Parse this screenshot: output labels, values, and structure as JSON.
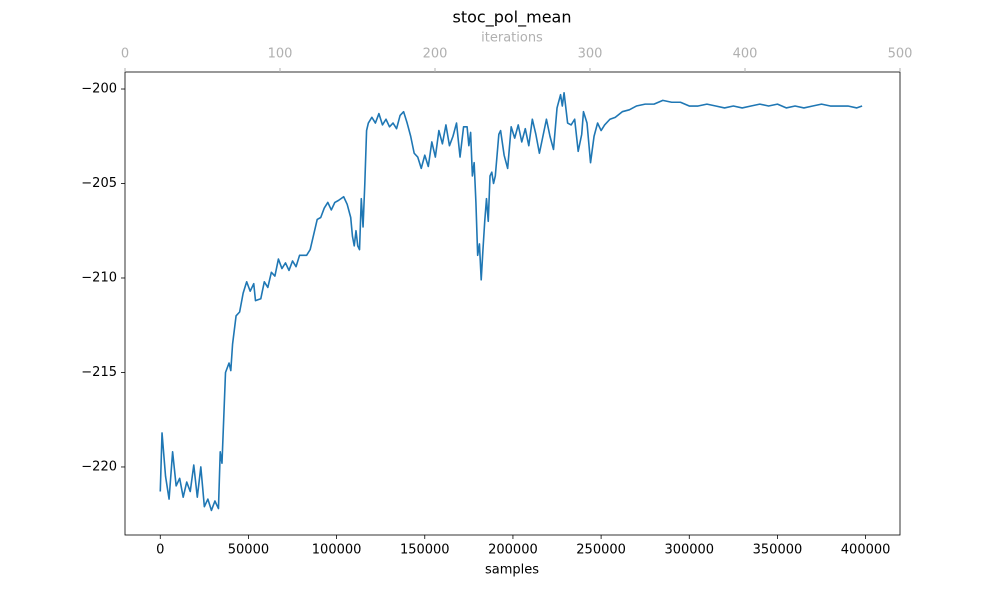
{
  "chart_data": {
    "type": "line",
    "title": "stoc_pol_mean",
    "xlabel": "samples",
    "x2label": "iterations",
    "color": "#1f77b4",
    "x2color": "#b0b0b0",
    "xlim": [
      -20000,
      419500
    ],
    "xticks": [
      0,
      50000,
      100000,
      150000,
      200000,
      250000,
      300000,
      350000,
      400000
    ],
    "x2lim": [
      0,
      500
    ],
    "x2ticks": [
      0,
      100,
      200,
      300,
      400,
      500
    ],
    "ylim": [
      -223.6,
      -199.1
    ],
    "yticks": [
      {
        "value": -200,
        "label": "−200"
      },
      {
        "value": -205,
        "label": "−205"
      },
      {
        "value": -210,
        "label": "−210"
      },
      {
        "value": -215,
        "label": "−215"
      },
      {
        "value": -220,
        "label": "−220"
      }
    ],
    "x": [
      0,
      1000,
      3000,
      5000,
      7000,
      9000,
      11000,
      13000,
      15000,
      17000,
      19000,
      21000,
      23000,
      25000,
      27000,
      29000,
      31000,
      33000,
      34000,
      35000,
      37000,
      39000,
      40000,
      41000,
      43000,
      45000,
      47000,
      49000,
      51000,
      53000,
      54000,
      57000,
      59000,
      61000,
      63000,
      65000,
      67000,
      69000,
      71000,
      73000,
      75000,
      77000,
      79000,
      83000,
      85000,
      87000,
      89000,
      91000,
      93000,
      95000,
      97000,
      99000,
      101000,
      104000,
      106000,
      108000,
      109000,
      110000,
      111000,
      112000,
      113000,
      114000,
      115000,
      116000,
      117000,
      118000,
      120000,
      122000,
      124000,
      126000,
      128000,
      130000,
      132000,
      134000,
      136000,
      138000,
      140000,
      142000,
      144000,
      146000,
      148000,
      150000,
      152000,
      154000,
      156000,
      158000,
      160000,
      162000,
      164000,
      166000,
      168000,
      170000,
      172000,
      174000,
      175000,
      176000,
      177000,
      178000,
      179000,
      180000,
      181000,
      182000,
      183000,
      184000,
      185000,
      186000,
      187000,
      188000,
      189000,
      190000,
      191000,
      192000,
      193000,
      195000,
      197000,
      199000,
      201000,
      203000,
      205000,
      207000,
      209000,
      211000,
      213000,
      215000,
      217000,
      219000,
      221000,
      223000,
      225000,
      227000,
      228000,
      229000,
      231000,
      233000,
      235000,
      237000,
      239000,
      240000,
      242000,
      244000,
      246000,
      248000,
      250000,
      252000,
      255000,
      258000,
      262000,
      266000,
      270000,
      275000,
      280000,
      285000,
      290000,
      295000,
      300000,
      305000,
      310000,
      315000,
      320000,
      325000,
      330000,
      335000,
      340000,
      345000,
      350000,
      355000,
      360000,
      365000,
      370000,
      375000,
      380000,
      385000,
      390000,
      395000,
      398000
    ],
    "values": [
      -221.3,
      -218.2,
      -220.5,
      -221.7,
      -219.2,
      -221.0,
      -220.6,
      -221.6,
      -220.8,
      -221.3,
      -219.9,
      -221.6,
      -220.0,
      -222.1,
      -221.7,
      -222.3,
      -221.8,
      -222.2,
      -219.2,
      -219.8,
      -215.0,
      -214.5,
      -214.9,
      -213.5,
      -212.0,
      -211.8,
      -210.8,
      -210.2,
      -210.7,
      -210.3,
      -211.2,
      -211.1,
      -210.2,
      -210.5,
      -209.7,
      -209.9,
      -209.0,
      -209.5,
      -209.2,
      -209.6,
      -209.1,
      -209.4,
      -208.8,
      -208.8,
      -208.5,
      -207.7,
      -206.9,
      -206.8,
      -206.3,
      -206.0,
      -206.4,
      -206.0,
      -205.9,
      -205.7,
      -206.1,
      -206.8,
      -207.8,
      -208.3,
      -207.5,
      -208.3,
      -208.5,
      -205.8,
      -207.3,
      -205.0,
      -202.2,
      -201.8,
      -201.5,
      -201.8,
      -201.3,
      -201.9,
      -201.6,
      -202.0,
      -201.8,
      -202.1,
      -201.4,
      -201.2,
      -201.8,
      -202.5,
      -203.4,
      -203.6,
      -204.2,
      -203.5,
      -204.1,
      -202.8,
      -203.6,
      -202.2,
      -202.9,
      -201.9,
      -203.0,
      -202.5,
      -201.8,
      -203.6,
      -202.0,
      -202.0,
      -203.0,
      -202.3,
      -204.6,
      -203.9,
      -206.0,
      -208.8,
      -208.2,
      -210.1,
      -208.5,
      -207.0,
      -205.8,
      -207.0,
      -204.6,
      -204.4,
      -205.0,
      -204.6,
      -203.5,
      -202.4,
      -202.2,
      -203.5,
      -204.2,
      -202.0,
      -202.6,
      -201.9,
      -202.8,
      -202.1,
      -203.0,
      -201.6,
      -202.4,
      -203.4,
      -202.5,
      -201.6,
      -202.5,
      -203.2,
      -201.0,
      -200.3,
      -200.9,
      -200.2,
      -201.8,
      -201.9,
      -201.6,
      -203.3,
      -202.4,
      -201.2,
      -201.8,
      -203.9,
      -202.5,
      -201.8,
      -202.2,
      -201.9,
      -201.6,
      -201.5,
      -201.2,
      -201.1,
      -200.9,
      -200.8,
      -200.8,
      -200.6,
      -200.7,
      -200.7,
      -200.9,
      -200.9,
      -200.8,
      -200.9,
      -201.0,
      -200.9,
      -201.0,
      -200.9,
      -200.8,
      -200.9,
      -200.8,
      -201.0,
      -200.9,
      -201.0,
      -200.9,
      -200.8,
      -200.9,
      -200.9,
      -200.9,
      -201.0,
      -200.9
    ]
  }
}
